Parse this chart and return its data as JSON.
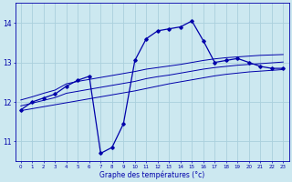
{
  "xlabel": "Graphe des températures (°c)",
  "background_color": "#cce8f0",
  "grid_color": "#aad0dc",
  "line_color": "#0000aa",
  "hours": [
    0,
    1,
    2,
    3,
    4,
    5,
    6,
    7,
    8,
    9,
    10,
    11,
    12,
    13,
    14,
    15,
    16,
    17,
    18,
    19,
    20,
    21,
    22,
    23
  ],
  "temp_curve": [
    11.8,
    12.0,
    12.1,
    12.2,
    12.4,
    12.55,
    12.65,
    10.7,
    10.85,
    11.45,
    13.05,
    13.6,
    13.8,
    13.85,
    13.9,
    14.05,
    13.55,
    13.0,
    13.05,
    13.1,
    13.0,
    12.9,
    12.85,
    12.85
  ],
  "min_line": [
    11.78,
    11.83,
    11.88,
    11.93,
    11.98,
    12.03,
    12.08,
    12.13,
    12.18,
    12.23,
    12.28,
    12.34,
    12.4,
    12.46,
    12.51,
    12.56,
    12.61,
    12.66,
    12.7,
    12.73,
    12.76,
    12.78,
    12.8,
    12.82
  ],
  "mean_line": [
    11.9,
    11.97,
    12.04,
    12.11,
    12.22,
    12.27,
    12.32,
    12.37,
    12.42,
    12.47,
    12.52,
    12.59,
    12.64,
    12.68,
    12.73,
    12.78,
    12.83,
    12.87,
    12.9,
    12.93,
    12.95,
    12.97,
    12.99,
    13.01
  ],
  "max_line": [
    12.05,
    12.13,
    12.22,
    12.3,
    12.46,
    12.52,
    12.57,
    12.62,
    12.67,
    12.72,
    12.77,
    12.83,
    12.87,
    12.91,
    12.95,
    13.0,
    13.05,
    13.09,
    13.12,
    13.14,
    13.16,
    13.18,
    13.19,
    13.2
  ],
  "ylim": [
    10.5,
    14.5
  ],
  "yticks": [
    11,
    12,
    13,
    14
  ],
  "xlim": [
    -0.5,
    23.5
  ]
}
